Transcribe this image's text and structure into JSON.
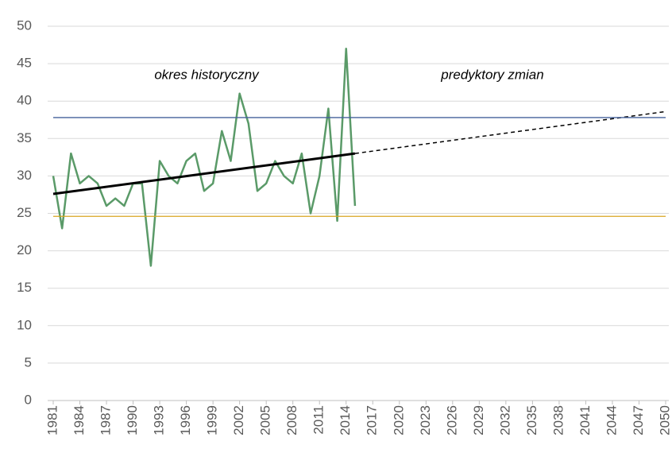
{
  "chart_data": {
    "type": "line",
    "annotations": [
      "okres historyczny",
      "predyktory zmian"
    ],
    "xlim": [
      1981,
      2050
    ],
    "xticks": [
      1981,
      1984,
      1987,
      1990,
      1993,
      1996,
      1999,
      2002,
      2005,
      2008,
      2011,
      2014,
      2017,
      2020,
      2023,
      2026,
      2029,
      2032,
      2035,
      2038,
      2041,
      2044,
      2047,
      2050
    ],
    "ylim": [
      0,
      50
    ],
    "yticks": [
      0,
      5,
      10,
      15,
      20,
      25,
      30,
      35,
      40,
      45,
      50
    ],
    "grid": true,
    "series": [
      {
        "color": "#5a9a68",
        "width": 2.5,
        "x": [
          1981,
          1982,
          1983,
          1984,
          1985,
          1986,
          1987,
          1988,
          1989,
          1990,
          1991,
          1992,
          1993,
          1994,
          1995,
          1996,
          1997,
          1998,
          1999,
          2000,
          2001,
          2002,
          2003,
          2004,
          2005,
          2006,
          2007,
          2008,
          2009,
          2010,
          2011,
          2012,
          2013,
          2014,
          2015
        ],
        "values": [
          30,
          23,
          33,
          29,
          30,
          29,
          26,
          27,
          26,
          29,
          29,
          18,
          32,
          30,
          29,
          32,
          33,
          28,
          29,
          36,
          32,
          41,
          37,
          28,
          29,
          32,
          30,
          29,
          33,
          25,
          30,
          39,
          24,
          47,
          26
        ]
      },
      {
        "color": "#000000",
        "width": 3,
        "x": [
          1981,
          2015
        ],
        "values": [
          27.6,
          33
        ]
      },
      {
        "color": "#000000",
        "width": 1.5,
        "dash": true,
        "x": [
          2015,
          2050
        ],
        "values": [
          33,
          38.6
        ]
      },
      {
        "color": "#44609a",
        "width": 1.3,
        "x": [
          1981,
          2050
        ],
        "values": [
          37.8,
          37.8
        ]
      },
      {
        "color": "#d9a520",
        "width": 1.3,
        "x": [
          1981,
          2050
        ],
        "values": [
          24.6,
          24.6
        ]
      }
    ]
  }
}
